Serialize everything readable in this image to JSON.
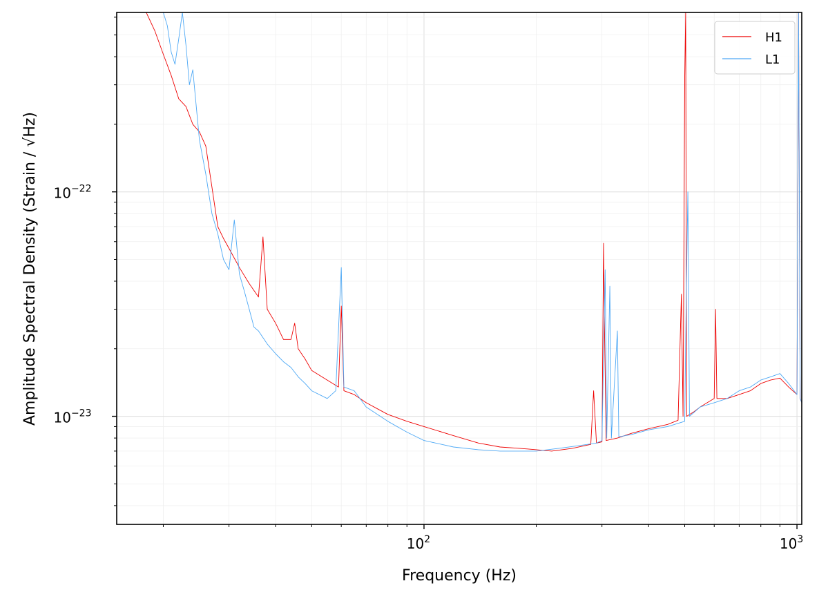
{
  "chart_data": {
    "type": "line",
    "xlabel": "Frequency (Hz)",
    "ylabel": "Amplitude Spectral Density (Strain / √Hz)",
    "xscale": "log",
    "yscale": "log",
    "xlim": [
      15,
      1030
    ],
    "ylim": [
      3.3e-24,
      6.3e-22
    ],
    "grid": true,
    "legend_position": "top-right",
    "x_ticks": [
      {
        "value": 100,
        "base": "10",
        "exp": "2"
      },
      {
        "value": 1000,
        "base": "10",
        "exp": "3"
      }
    ],
    "y_ticks": [
      {
        "value": 1e-23,
        "base": "10",
        "exp": "−23"
      },
      {
        "value": 1e-22,
        "base": "10",
        "exp": "−22"
      }
    ],
    "series": [
      {
        "name": "H1",
        "color": "#ee0000",
        "points": [
          [
            18,
            6.3e-22
          ],
          [
            19,
            5.2e-22
          ],
          [
            20,
            4.1e-22
          ],
          [
            21,
            3.3e-22
          ],
          [
            22,
            2.6e-22
          ],
          [
            23,
            2.4e-22
          ],
          [
            24,
            2e-22
          ],
          [
            25,
            1.85e-22
          ],
          [
            26,
            1.6e-22
          ],
          [
            27,
            1.05e-22
          ],
          [
            28,
            7e-23
          ],
          [
            29,
            6.2e-23
          ],
          [
            30,
            5.6e-23
          ],
          [
            32,
            4.6e-23
          ],
          [
            34,
            3.9e-23
          ],
          [
            36,
            3.4e-23
          ],
          [
            37,
            6.3e-23
          ],
          [
            38,
            3e-23
          ],
          [
            40,
            2.6e-23
          ],
          [
            42,
            2.2e-23
          ],
          [
            44,
            2.2e-23
          ],
          [
            45,
            2.6e-23
          ],
          [
            46,
            2e-23
          ],
          [
            48,
            1.8e-23
          ],
          [
            50,
            1.6e-23
          ],
          [
            55,
            1.45e-23
          ],
          [
            59,
            1.35e-23
          ],
          [
            60,
            3.1e-23
          ],
          [
            61,
            1.3e-23
          ],
          [
            65,
            1.25e-23
          ],
          [
            70,
            1.15e-23
          ],
          [
            75,
            1.08e-23
          ],
          [
            80,
            1.02e-23
          ],
          [
            90,
            9.5e-24
          ],
          [
            100,
            9e-24
          ],
          [
            120,
            8.2e-24
          ],
          [
            140,
            7.6e-24
          ],
          [
            160,
            7.3e-24
          ],
          [
            180,
            7.2e-24
          ],
          [
            200,
            7.1e-24
          ],
          [
            220,
            7e-24
          ],
          [
            250,
            7.2e-24
          ],
          [
            280,
            7.5e-24
          ],
          [
            285,
            1.3e-23
          ],
          [
            290,
            7.6e-24
          ],
          [
            300,
            7.7e-24
          ],
          [
            303,
            5.9e-23
          ],
          [
            305,
            2.3e-23
          ],
          [
            308,
            7.8e-24
          ],
          [
            330,
            8e-24
          ],
          [
            360,
            8.4e-24
          ],
          [
            400,
            8.8e-24
          ],
          [
            450,
            9.2e-24
          ],
          [
            480,
            9.6e-24
          ],
          [
            490,
            3.5e-23
          ],
          [
            495,
            1e-23
          ],
          [
            500,
            3.2e-22
          ],
          [
            503,
            6.3e-22
          ],
          [
            506,
            1e-23
          ],
          [
            530,
            1.05e-23
          ],
          [
            550,
            1.1e-23
          ],
          [
            600,
            1.2e-23
          ],
          [
            605,
            3e-23
          ],
          [
            610,
            1.2e-23
          ],
          [
            650,
            1.2e-23
          ],
          [
            700,
            1.25e-23
          ],
          [
            750,
            1.3e-23
          ],
          [
            800,
            1.4e-23
          ],
          [
            850,
            1.45e-23
          ],
          [
            900,
            1.48e-23
          ],
          [
            950,
            1.35e-23
          ],
          [
            1000,
            1.25e-23
          ],
          [
            1010,
            6.3e-22
          ],
          [
            1020,
            1.2e-23
          ],
          [
            1030,
            1.15e-23
          ]
        ]
      },
      {
        "name": "L1",
        "color": "#4da8f5",
        "points": [
          [
            20,
            6.3e-22
          ],
          [
            20.5,
            5.5e-22
          ],
          [
            21,
            4.2e-22
          ],
          [
            21.5,
            3.7e-22
          ],
          [
            22,
            4.8e-22
          ],
          [
            22.5,
            6.3e-22
          ],
          [
            23,
            4.5e-22
          ],
          [
            23.5,
            3e-22
          ],
          [
            24,
            3.5e-22
          ],
          [
            25,
            1.7e-22
          ],
          [
            26,
            1.2e-22
          ],
          [
            27,
            8e-23
          ],
          [
            28,
            6.5e-23
          ],
          [
            29,
            5e-23
          ],
          [
            30,
            4.5e-23
          ],
          [
            31,
            7.5e-23
          ],
          [
            32,
            4.3e-23
          ],
          [
            33,
            3.6e-23
          ],
          [
            34,
            3e-23
          ],
          [
            35,
            2.5e-23
          ],
          [
            36,
            2.4e-23
          ],
          [
            38,
            2.1e-23
          ],
          [
            40,
            1.9e-23
          ],
          [
            42,
            1.75e-23
          ],
          [
            44,
            1.65e-23
          ],
          [
            46,
            1.5e-23
          ],
          [
            48,
            1.4e-23
          ],
          [
            50,
            1.3e-23
          ],
          [
            55,
            1.2e-23
          ],
          [
            58,
            1.3e-23
          ],
          [
            60,
            4.6e-23
          ],
          [
            61,
            1.35e-23
          ],
          [
            65,
            1.3e-23
          ],
          [
            70,
            1.1e-23
          ],
          [
            80,
            9.5e-24
          ],
          [
            90,
            8.5e-24
          ],
          [
            100,
            7.8e-24
          ],
          [
            120,
            7.3e-24
          ],
          [
            140,
            7.1e-24
          ],
          [
            160,
            7e-24
          ],
          [
            180,
            7e-24
          ],
          [
            200,
            7e-24
          ],
          [
            230,
            7.2e-24
          ],
          [
            260,
            7.4e-24
          ],
          [
            290,
            7.6e-24
          ],
          [
            300,
            7.8e-24
          ],
          [
            306,
            4.5e-23
          ],
          [
            309,
            8e-24
          ],
          [
            315,
            3.8e-23
          ],
          [
            318,
            8e-24
          ],
          [
            330,
            2.4e-23
          ],
          [
            333,
            8.1e-24
          ],
          [
            360,
            8.3e-24
          ],
          [
            400,
            8.7e-24
          ],
          [
            450,
            9e-24
          ],
          [
            500,
            9.5e-24
          ],
          [
            505,
            3.5e-23
          ],
          [
            510,
            1e-22
          ],
          [
            515,
            1e-23
          ],
          [
            550,
            1.1e-23
          ],
          [
            600,
            1.15e-23
          ],
          [
            650,
            1.2e-23
          ],
          [
            700,
            1.3e-23
          ],
          [
            750,
            1.35e-23
          ],
          [
            800,
            1.45e-23
          ],
          [
            850,
            1.5e-23
          ],
          [
            900,
            1.55e-23
          ],
          [
            950,
            1.4e-23
          ],
          [
            1000,
            1.25e-23
          ],
          [
            1010,
            6.3e-22
          ],
          [
            1020,
            1.2e-23
          ],
          [
            1030,
            1.15e-23
          ]
        ]
      }
    ]
  }
}
